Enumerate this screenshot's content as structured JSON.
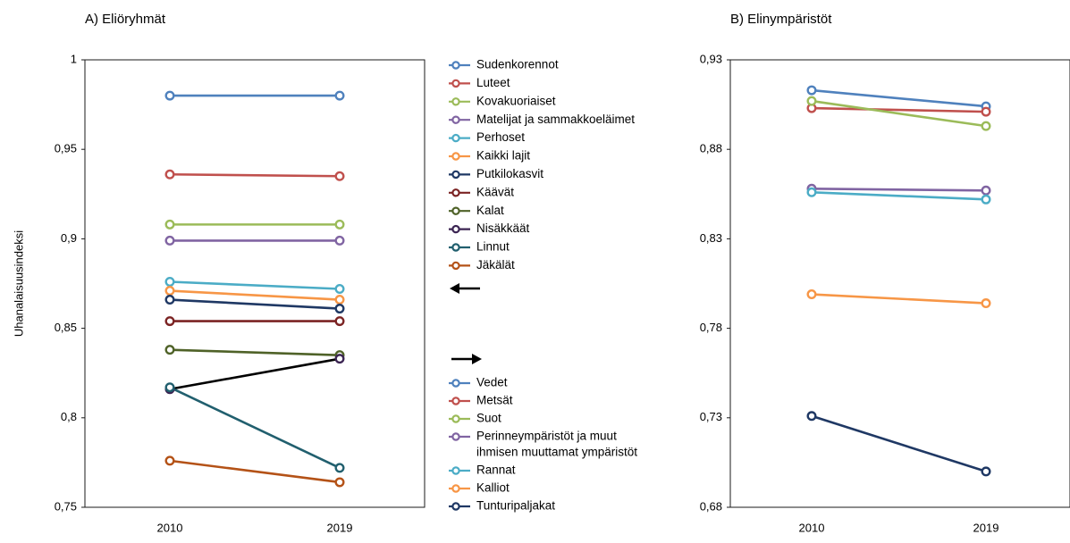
{
  "chart_data": [
    {
      "type": "line",
      "title": "A) Eliöryhmät",
      "ylabel": "Uhanalaisuusindeksi",
      "xlabel": "",
      "x": [
        "2010",
        "2019"
      ],
      "ylim": [
        0.75,
        1
      ],
      "yticks": [
        "0,75",
        "0,8",
        "0,85",
        "0,9",
        "0,95",
        "1"
      ],
      "grid": false,
      "series": [
        {
          "name": "Sudenkorennot",
          "values": [
            0.98,
            0.98
          ],
          "color": "#4f81bd"
        },
        {
          "name": "Luteet",
          "values": [
            0.936,
            0.935
          ],
          "color": "#c0504d"
        },
        {
          "name": "Kovakuoriaiset",
          "values": [
            0.908,
            0.908
          ],
          "color": "#9bbb59"
        },
        {
          "name": "Matelijat ja sammakkoeläimet",
          "values": [
            0.899,
            0.899
          ],
          "color": "#8064a2"
        },
        {
          "name": "Perhoset",
          "values": [
            0.876,
            0.872
          ],
          "color": "#4bacc6"
        },
        {
          "name": "Kaikki lajit",
          "values": [
            0.871,
            0.866
          ],
          "color": "#f79646"
        },
        {
          "name": "Putkilokasvit",
          "values": [
            0.866,
            0.861
          ],
          "color": "#1f3864"
        },
        {
          "name": "Käävät",
          "values": [
            0.854,
            0.854
          ],
          "color": "#7b2323"
        },
        {
          "name": "Kalat",
          "values": [
            0.838,
            0.835
          ],
          "color": "#4f6228"
        },
        {
          "name": "Nisäkkäät",
          "values": [
            0.816,
            0.833
          ],
          "color": "#3b2452"
        },
        {
          "name": "Linnut",
          "values": [
            0.817,
            0.772
          ],
          "color": "#215f6e"
        },
        {
          "name": "Jäkälät",
          "values": [
            0.776,
            0.764
          ],
          "color": "#b45217"
        }
      ]
    },
    {
      "type": "line",
      "title": "B) Elinympäristöt",
      "ylabel": "",
      "xlabel": "",
      "x": [
        "2010",
        "2019"
      ],
      "ylim": [
        0.68,
        0.93
      ],
      "yticks": [
        "0,68",
        "0,73",
        "0,78",
        "0,83",
        "0,88",
        "0,93"
      ],
      "grid": false,
      "series": [
        {
          "name": "Vedet",
          "values": [
            0.913,
            0.904
          ],
          "color": "#4f81bd"
        },
        {
          "name": "Metsät",
          "values": [
            0.903,
            0.901
          ],
          "color": "#c0504d"
        },
        {
          "name": "Suot",
          "values": [
            0.907,
            0.893
          ],
          "color": "#9bbb59"
        },
        {
          "name": "Perinneympäristöt ja muut ihmisen muuttamat ympäristöt",
          "values": [
            0.858,
            0.857
          ],
          "color": "#8064a2"
        },
        {
          "name": "Rannat",
          "values": [
            0.856,
            0.852
          ],
          "color": "#4bacc6"
        },
        {
          "name": "Kalliot",
          "values": [
            0.799,
            0.794
          ],
          "color": "#f79646"
        },
        {
          "name": "Tunturipaljakat",
          "values": [
            0.731,
            0.7
          ],
          "color": "#1f3864"
        }
      ]
    }
  ],
  "legends": {
    "a_entries": [
      "Sudenkorennot",
      "Luteet",
      "Kovakuoriaiset",
      "Matelijat ja sammakkoeläimet",
      "Perhoset",
      "Kaikki lajit",
      "Putkilokasvit",
      "Käävät",
      "Kalat",
      "Nisäkkäät",
      "Linnut",
      "Jäkälät"
    ],
    "b_entries": [
      {
        "lines": [
          "Vedet"
        ]
      },
      {
        "lines": [
          "Metsät"
        ]
      },
      {
        "lines": [
          "Suot"
        ]
      },
      {
        "lines": [
          "Perinneympäristöt ja muut",
          "ihmisen muuttamat ympäristöt"
        ]
      },
      {
        "lines": [
          "Rannat"
        ]
      },
      {
        "lines": [
          "Kalliot"
        ]
      },
      {
        "lines": [
          "Tunturipaljakat"
        ]
      }
    ],
    "a_arrow": "left-arrow-icon",
    "b_arrow": "right-arrow-icon"
  }
}
